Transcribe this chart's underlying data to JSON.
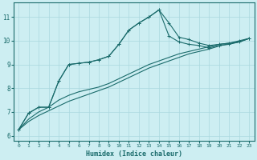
{
  "xlabel": "Humidex (Indice chaleur)",
  "background_color": "#cdeef2",
  "line_color": "#1a6b6b",
  "xlim": [
    -0.5,
    23.5
  ],
  "ylim": [
    5.8,
    11.6
  ],
  "xticks": [
    0,
    1,
    2,
    3,
    4,
    5,
    6,
    7,
    8,
    9,
    10,
    11,
    12,
    13,
    14,
    15,
    16,
    17,
    18,
    19,
    20,
    21,
    22,
    23
  ],
  "yticks": [
    6,
    7,
    8,
    9,
    10,
    11
  ],
  "line1_x": [
    0,
    1,
    2,
    3,
    4,
    5,
    6,
    7,
    8,
    9,
    10,
    11,
    12,
    13,
    14,
    15,
    16,
    17,
    18,
    19,
    20,
    21,
    22,
    23
  ],
  "line1_y": [
    6.25,
    6.95,
    7.2,
    7.2,
    8.3,
    9.0,
    9.05,
    9.1,
    9.2,
    9.35,
    9.85,
    10.45,
    10.75,
    11.0,
    11.3,
    10.75,
    10.15,
    10.05,
    9.9,
    9.8,
    9.85,
    9.9,
    10.0,
    10.1
  ],
  "line2_x": [
    0,
    1,
    2,
    3,
    4,
    5,
    6,
    7,
    8,
    9,
    10,
    11,
    12,
    13,
    14,
    15,
    16,
    17,
    18,
    19,
    20,
    21,
    22,
    23
  ],
  "line2_y": [
    6.25,
    6.95,
    7.2,
    7.2,
    8.3,
    9.0,
    9.05,
    9.1,
    9.2,
    9.35,
    9.85,
    10.45,
    10.75,
    11.0,
    11.3,
    10.2,
    9.95,
    9.85,
    9.8,
    9.7,
    9.8,
    9.85,
    9.95,
    10.1
  ],
  "line3_x": [
    0,
    1,
    2,
    3,
    4,
    5,
    6,
    7,
    8,
    9,
    10,
    11,
    12,
    13,
    14,
    15,
    16,
    17,
    18,
    19,
    20,
    21,
    22,
    23
  ],
  "line3_y": [
    6.25,
    6.7,
    7.0,
    7.2,
    7.5,
    7.7,
    7.85,
    7.95,
    8.05,
    8.2,
    8.4,
    8.6,
    8.8,
    9.0,
    9.15,
    9.3,
    9.45,
    9.55,
    9.65,
    9.75,
    9.85,
    9.9,
    9.95,
    10.1
  ],
  "line4_x": [
    0,
    1,
    2,
    3,
    4,
    5,
    6,
    7,
    8,
    9,
    10,
    11,
    12,
    13,
    14,
    15,
    16,
    17,
    18,
    19,
    20,
    21,
    22,
    23
  ],
  "line4_y": [
    6.25,
    6.6,
    6.85,
    7.05,
    7.25,
    7.45,
    7.6,
    7.75,
    7.9,
    8.05,
    8.25,
    8.45,
    8.65,
    8.85,
    9.0,
    9.15,
    9.3,
    9.45,
    9.55,
    9.65,
    9.78,
    9.88,
    9.95,
    10.1
  ]
}
